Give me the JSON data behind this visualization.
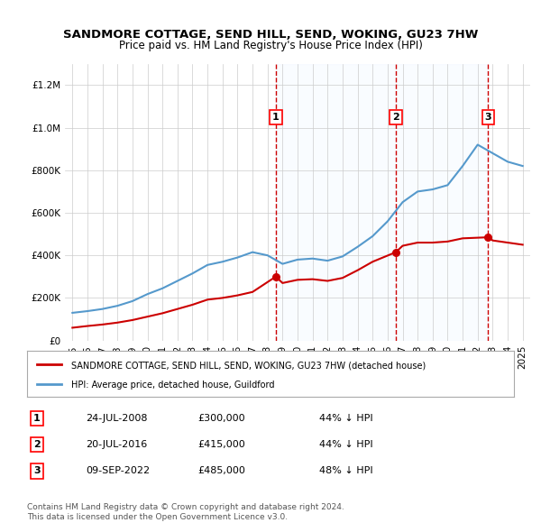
{
  "title": "SANDMORE COTTAGE, SEND HILL, SEND, WOKING, GU23 7HW",
  "subtitle": "Price paid vs. HM Land Registry's House Price Index (HPI)",
  "legend_label_red": "SANDMORE COTTAGE, SEND HILL, SEND, WOKING, GU23 7HW (detached house)",
  "legend_label_blue": "HPI: Average price, detached house, Guildford",
  "transactions": [
    {
      "num": 1,
      "date": "24-JUL-2008",
      "price": "£300,000",
      "pct": "44% ↓ HPI",
      "year": 2008.55
    },
    {
      "num": 2,
      "date": "20-JUL-2016",
      "price": "£415,000",
      "pct": "44% ↓ HPI",
      "year": 2016.55
    },
    {
      "num": 3,
      "date": "09-SEP-2022",
      "price": "£485,000",
      "pct": "48% ↓ HPI",
      "year": 2022.7
    }
  ],
  "footnote1": "Contains HM Land Registry data © Crown copyright and database right 2024.",
  "footnote2": "This data is licensed under the Open Government Licence v3.0.",
  "hpi_years": [
    1995,
    1996,
    1997,
    1998,
    1999,
    2000,
    2001,
    2002,
    2003,
    2004,
    2005,
    2006,
    2007,
    2008,
    2009,
    2010,
    2011,
    2012,
    2013,
    2014,
    2015,
    2016,
    2017,
    2018,
    2019,
    2020,
    2021,
    2022,
    2023,
    2024,
    2025
  ],
  "hpi_values": [
    130000,
    138000,
    148000,
    163000,
    185000,
    218000,
    245000,
    280000,
    315000,
    355000,
    370000,
    390000,
    415000,
    400000,
    360000,
    380000,
    385000,
    375000,
    395000,
    440000,
    490000,
    560000,
    650000,
    700000,
    710000,
    730000,
    820000,
    920000,
    880000,
    840000,
    820000
  ],
  "sold_years": [
    2008.55,
    2016.55,
    2022.7
  ],
  "sold_values": [
    300000,
    415000,
    485000
  ],
  "red_line_years": [
    1995,
    1996,
    1997,
    1998,
    1999,
    2000,
    2001,
    2002,
    2003,
    2004,
    2005,
    2006,
    2007,
    2008.55,
    2009,
    2010,
    2011,
    2012,
    2013,
    2014,
    2015,
    2016.55,
    2017,
    2018,
    2019,
    2020,
    2021,
    2022.7,
    2023,
    2024,
    2025
  ],
  "red_line_values": [
    60000,
    68000,
    75000,
    84000,
    96000,
    112000,
    128000,
    148000,
    168000,
    192000,
    200000,
    212000,
    228000,
    300000,
    270000,
    285000,
    288000,
    280000,
    294000,
    330000,
    370000,
    415000,
    445000,
    460000,
    460000,
    465000,
    480000,
    485000,
    470000,
    460000,
    450000
  ],
  "ylim": [
    0,
    1300000
  ],
  "xlim_left": 1994.5,
  "xlim_right": 2025.5,
  "xticks": [
    1995,
    1996,
    1997,
    1998,
    1999,
    2000,
    2001,
    2002,
    2003,
    2004,
    2005,
    2006,
    2007,
    2008,
    2009,
    2010,
    2011,
    2012,
    2013,
    2014,
    2015,
    2016,
    2017,
    2018,
    2019,
    2020,
    2021,
    2022,
    2023,
    2024,
    2025
  ],
  "color_red": "#cc0000",
  "color_blue": "#5599cc",
  "color_shade": "#ddeeff",
  "background_color": "#ffffff",
  "dashed_color": "#cc0000",
  "grid_color": "#cccccc"
}
